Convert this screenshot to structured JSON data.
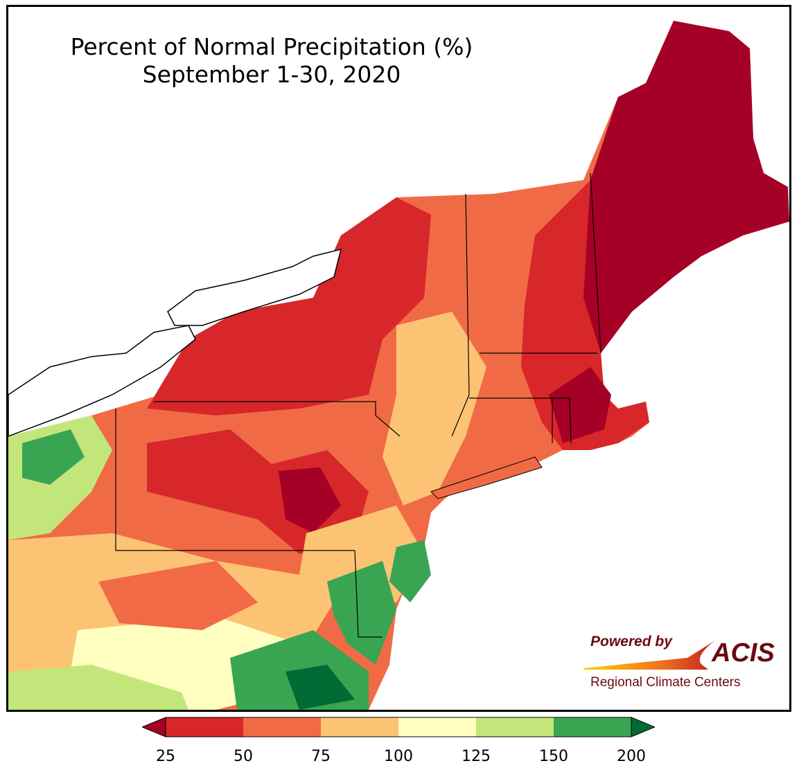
{
  "title": {
    "line1": "Percent of Normal Precipitation (%)",
    "line2": "September 1-30, 2020"
  },
  "logo": {
    "powered_by": "Powered by",
    "brand": "ACIS",
    "subtitle": "Regional Climate Centers"
  },
  "legend": {
    "ticks": [
      "25",
      "50",
      "75",
      "100",
      "125",
      "150",
      "200"
    ],
    "colors": [
      "#a50026",
      "#d7272b",
      "#f06b45",
      "#fdc374",
      "#ffffc0",
      "#c2e67a",
      "#39a552",
      "#006b34"
    ],
    "extend": "both"
  }
}
